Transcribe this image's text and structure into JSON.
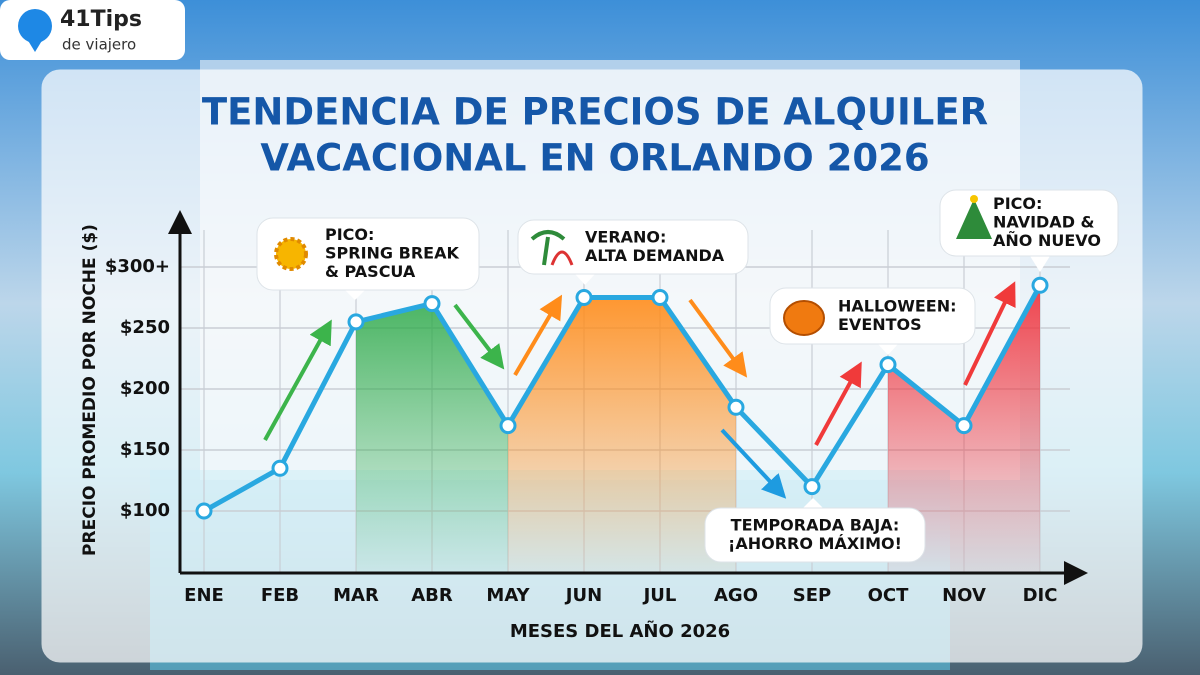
{
  "brand": {
    "name": "41Tips",
    "tagline": "de viajero"
  },
  "chart_data": {
    "type": "line",
    "title_lines": [
      "TENDENCIA DE PRECIOS DE ALQUILER",
      "VACACIONAL EN ORLANDO 2026"
    ],
    "x_label": "MESES DEL AÑO 2026",
    "y_label": "PRECIO PROMEDIO POR NOCHE ($)",
    "categories": [
      "ENE",
      "FEB",
      "MAR",
      "ABR",
      "MAY",
      "JUN",
      "JUL",
      "AGO",
      "SEP",
      "OCT",
      "NOV",
      "DIC"
    ],
    "series": [
      {
        "name": "Precio promedio por noche",
        "color": "#29a8e0",
        "values": [
          100,
          135,
          255,
          270,
          170,
          275,
          275,
          185,
          120,
          220,
          170,
          285
        ]
      }
    ],
    "ylim": [
      50,
      340
    ],
    "yticks": [
      {
        "value": 100,
        "label": "$100"
      },
      {
        "value": 150,
        "label": "$150"
      },
      {
        "value": 200,
        "label": "$200"
      },
      {
        "value": 250,
        "label": "$250"
      },
      {
        "value": 300,
        "label": "$300+"
      }
    ],
    "grid": true,
    "annotations": [
      {
        "lines": [
          "PICO:",
          "SPRING BREAK",
          "& PASCUA"
        ]
      },
      {
        "lines": [
          "VERANO:",
          "ALTA DEMANDA"
        ]
      },
      {
        "lines": [
          "HALLOWEEN:",
          "EVENTOS"
        ]
      },
      {
        "lines": [
          "TEMPORADA BAJA:",
          "¡AHORRO MÁXIMO!"
        ]
      },
      {
        "lines": [
          "PICO:",
          "NAVIDAD &",
          "AÑO NUEVO"
        ]
      }
    ]
  }
}
